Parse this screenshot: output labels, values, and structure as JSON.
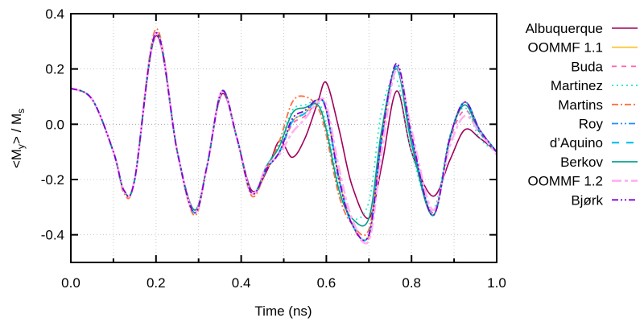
{
  "chart_data": {
    "type": "line",
    "title": "",
    "xlabel": "Time (ns)",
    "ylabel": "<My> / Ms",
    "ylabel_parts": {
      "open": "<M",
      "sub1": "y",
      "mid": "> / M",
      "sub2": "s"
    },
    "xlim": [
      0.0,
      1.0
    ],
    "ylim": [
      -0.5,
      0.4
    ],
    "grid": true,
    "legend_position": "right-outside",
    "x_ticks": [
      "0.0",
      "0.2",
      "0.4",
      "0.6",
      "0.8",
      "1.0"
    ],
    "y_ticks": [
      "0.4",
      "0.2",
      "0.0",
      "-0.2",
      "-0.4"
    ],
    "x": [
      0.0,
      0.05,
      0.1,
      0.125,
      0.15,
      0.2,
      0.25,
      0.29,
      0.32,
      0.355,
      0.39,
      0.425,
      0.46,
      0.49,
      0.52,
      0.55,
      0.58,
      0.6,
      0.63,
      0.66,
      0.7,
      0.73,
      0.765,
      0.8,
      0.85,
      0.89,
      0.925,
      0.96,
      1.0
    ],
    "series": [
      {
        "name": "Albuquerque",
        "color": "#a0005a",
        "dash": "",
        "width": 1.6,
        "values": [
          0.13,
          0.09,
          -0.1,
          -0.24,
          -0.2,
          0.32,
          -0.1,
          -0.31,
          -0.15,
          0.11,
          -0.05,
          -0.24,
          -0.17,
          -0.06,
          -0.12,
          -0.05,
          0.08,
          0.15,
          -0.02,
          -0.22,
          -0.34,
          -0.15,
          0.12,
          -0.1,
          -0.26,
          -0.13,
          -0.02,
          -0.05,
          -0.1
        ]
      },
      {
        "name": "OOMMF 1.1",
        "color": "#ffc020",
        "dash": "",
        "width": 1.6,
        "values": [
          0.13,
          0.09,
          -0.1,
          -0.24,
          -0.2,
          0.33,
          -0.1,
          -0.32,
          -0.15,
          0.12,
          -0.05,
          -0.25,
          -0.16,
          -0.1,
          0.01,
          0.04,
          0.09,
          0.05,
          -0.2,
          -0.36,
          -0.4,
          -0.05,
          0.21,
          -0.05,
          -0.33,
          -0.05,
          0.08,
          -0.02,
          -0.1
        ]
      },
      {
        "name": "Buda",
        "color": "#ff60b0",
        "dash": "6,6",
        "width": 1.8,
        "values": [
          0.13,
          0.09,
          -0.1,
          -0.24,
          -0.2,
          0.33,
          -0.1,
          -0.32,
          -0.15,
          0.12,
          -0.05,
          -0.25,
          -0.16,
          -0.1,
          0.0,
          0.03,
          0.08,
          0.06,
          -0.18,
          -0.36,
          -0.41,
          -0.07,
          0.2,
          -0.05,
          -0.32,
          -0.06,
          0.05,
          -0.03,
          -0.1
        ]
      },
      {
        "name": "Martinez",
        "color": "#20e8d0",
        "dash": "2,4",
        "width": 1.8,
        "values": [
          0.13,
          0.09,
          -0.1,
          -0.24,
          -0.2,
          0.33,
          -0.1,
          -0.32,
          -0.15,
          0.12,
          -0.05,
          -0.25,
          -0.15,
          -0.07,
          0.05,
          0.07,
          0.08,
          0.0,
          -0.22,
          -0.34,
          -0.28,
          0.05,
          0.16,
          -0.1,
          -0.31,
          -0.04,
          0.06,
          -0.05,
          -0.1
        ]
      },
      {
        "name": "Martins",
        "color": "#ff7040",
        "dash": "8,3,2,3",
        "width": 1.8,
        "values": [
          0.13,
          0.09,
          -0.1,
          -0.25,
          -0.2,
          0.345,
          -0.1,
          -0.33,
          -0.15,
          0.12,
          -0.05,
          -0.26,
          -0.16,
          -0.06,
          0.08,
          0.1,
          0.06,
          -0.04,
          -0.26,
          -0.36,
          -0.38,
          -0.05,
          0.21,
          -0.05,
          -0.33,
          -0.05,
          0.08,
          -0.02,
          -0.1
        ]
      },
      {
        "name": "Roy",
        "color": "#2090ff",
        "dash": "8,3,2,3,2,3",
        "width": 1.8,
        "values": [
          0.13,
          0.09,
          -0.1,
          -0.24,
          -0.2,
          0.33,
          -0.1,
          -0.32,
          -0.15,
          0.12,
          -0.05,
          -0.25,
          -0.16,
          -0.1,
          0.01,
          0.04,
          0.09,
          0.05,
          -0.2,
          -0.36,
          -0.4,
          -0.05,
          0.21,
          -0.05,
          -0.33,
          -0.05,
          0.08,
          -0.02,
          -0.1
        ]
      },
      {
        "name": "d'Aquino",
        "color": "#00c0f0",
        "dash": "9,9",
        "width": 2.2,
        "values": [
          0.13,
          0.09,
          -0.1,
          -0.24,
          -0.2,
          0.33,
          -0.1,
          -0.32,
          -0.15,
          0.12,
          -0.05,
          -0.25,
          -0.16,
          -0.1,
          0.01,
          0.04,
          0.09,
          0.05,
          -0.2,
          -0.36,
          -0.4,
          -0.05,
          0.21,
          -0.05,
          -0.33,
          -0.05,
          0.08,
          -0.02,
          -0.1
        ]
      },
      {
        "name": "Berkov",
        "color": "#00a088",
        "dash": "",
        "width": 1.6,
        "values": [
          0.13,
          0.09,
          -0.1,
          -0.24,
          -0.2,
          0.33,
          -0.1,
          -0.31,
          -0.15,
          0.12,
          -0.05,
          -0.25,
          -0.15,
          -0.08,
          0.04,
          0.06,
          0.07,
          -0.02,
          -0.24,
          -0.34,
          -0.34,
          -0.02,
          0.2,
          -0.07,
          -0.33,
          -0.05,
          0.07,
          -0.03,
          -0.1
        ]
      },
      {
        "name": "OOMMF 1.2",
        "color": "#ffb0f0",
        "dash": "12,4,4,4",
        "width": 2.6,
        "values": [
          0.13,
          0.09,
          -0.1,
          -0.24,
          -0.2,
          0.33,
          -0.1,
          -0.32,
          -0.15,
          0.12,
          -0.05,
          -0.25,
          -0.15,
          -0.11,
          -0.03,
          0.02,
          0.08,
          0.07,
          -0.16,
          -0.34,
          -0.42,
          -0.1,
          0.2,
          -0.02,
          -0.31,
          -0.08,
          0.03,
          -0.03,
          -0.11
        ]
      },
      {
        "name": "Bjørk",
        "color": "#8000d0",
        "dash": "8,3,2,3,2,3",
        "width": 1.8,
        "values": [
          0.13,
          0.09,
          -0.1,
          -0.24,
          -0.2,
          0.33,
          -0.1,
          -0.32,
          -0.15,
          0.12,
          -0.05,
          -0.25,
          -0.16,
          -0.1,
          0.02,
          0.05,
          0.09,
          0.05,
          -0.2,
          -0.36,
          -0.4,
          -0.05,
          0.22,
          -0.04,
          -0.33,
          -0.05,
          0.08,
          -0.02,
          -0.1
        ]
      }
    ]
  }
}
